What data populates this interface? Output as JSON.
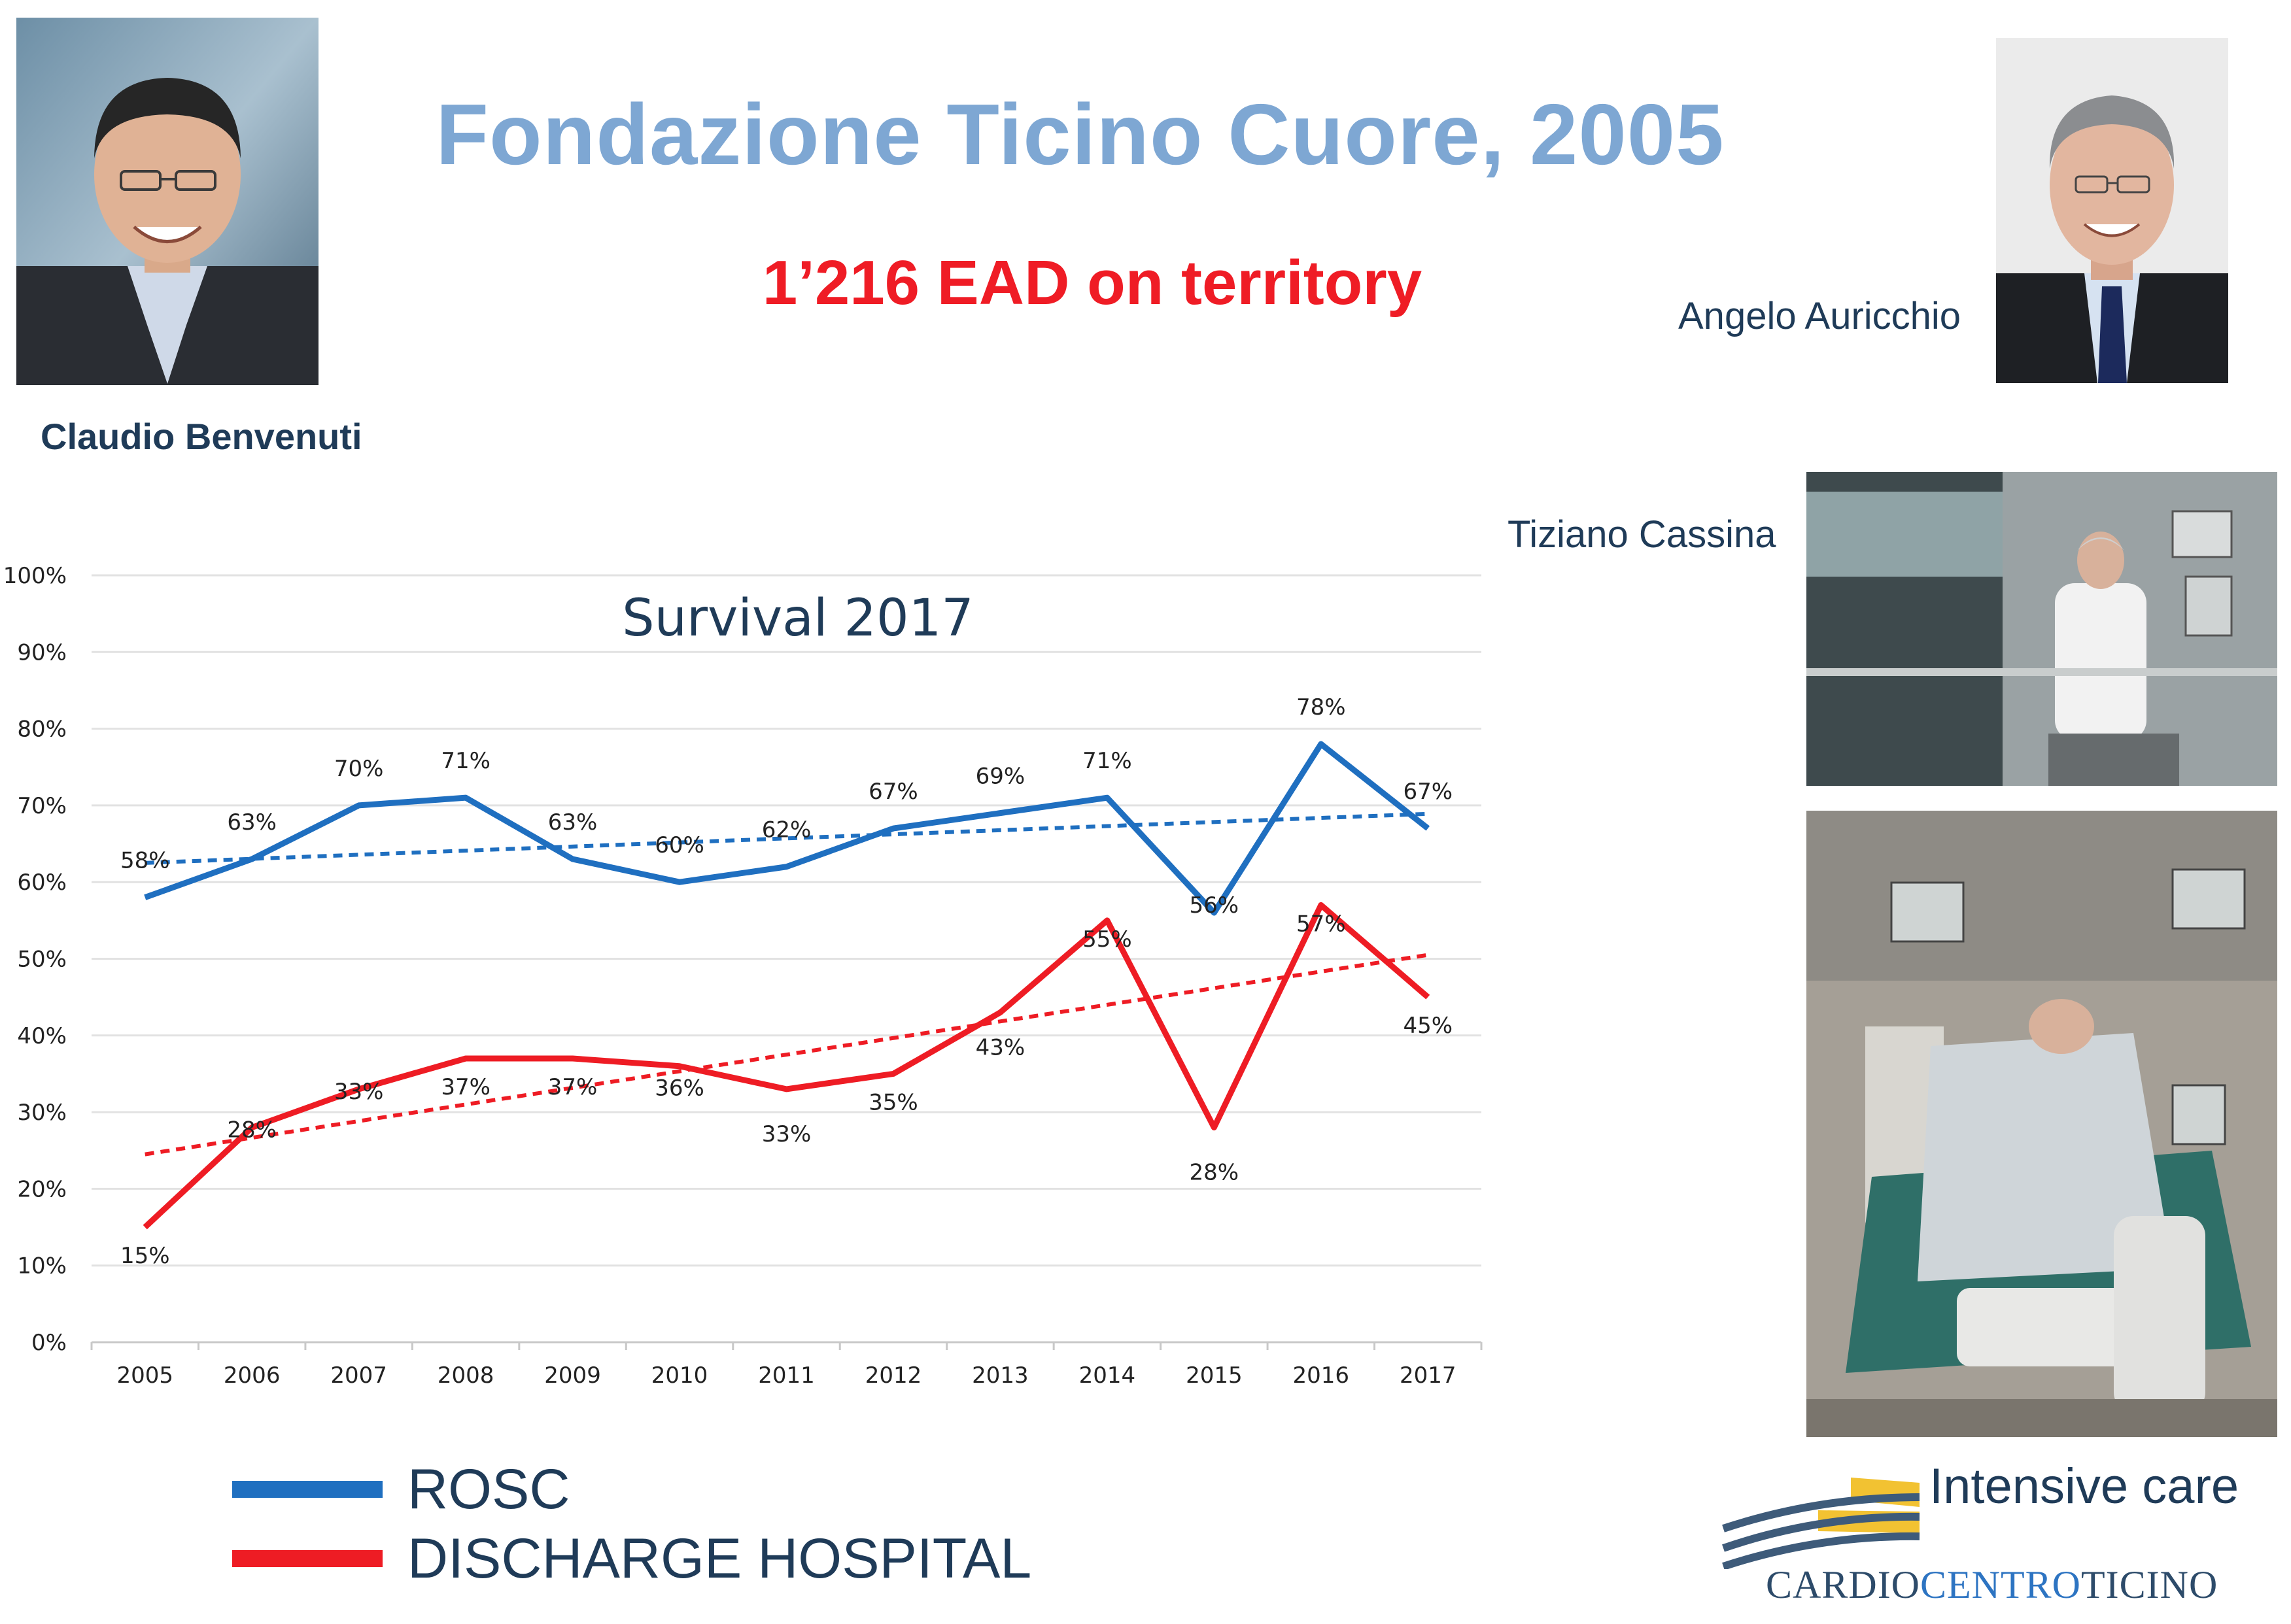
{
  "slide": {
    "title": "Fondazione Ticino Cuore, 2005",
    "subtitle": "1’216 EAD on territory"
  },
  "people": {
    "left_name": "Claudio Benvenuti",
    "right_name": "Angelo Auricchio",
    "middle_name": "Tiziano Cassina"
  },
  "captions": {
    "intensive_care": "Intensive care"
  },
  "logo": {
    "part1": "CARDIO",
    "part2": "CENTRO",
    "part3": "TICINO"
  },
  "legend": {
    "rosc": "ROSC",
    "discharge": "DISCHARGE HOSPITAL"
  },
  "colors": {
    "title": "#7ea7d3",
    "subtitle": "#ef1c25",
    "rosc": "#1f6fc0",
    "discharge": "#ee1c24",
    "text_dark": "#1f3b58"
  },
  "chart_data": {
    "type": "line",
    "title": "Survival 2017",
    "categories": [
      "2005",
      "2006",
      "2007",
      "2008",
      "2009",
      "2010",
      "2011",
      "2012",
      "2013",
      "2014",
      "2015",
      "2016",
      "2017"
    ],
    "series": [
      {
        "name": "ROSC",
        "values": [
          58,
          63,
          70,
          71,
          63,
          60,
          62,
          67,
          69,
          71,
          56,
          78,
          67
        ],
        "labels": [
          "58%",
          "63%",
          "70%",
          "71%",
          "63%",
          "60%",
          "62%",
          "67%",
          "69%",
          "71%",
          "56%",
          "78%",
          "67%"
        ],
        "trendline": [
          62.5,
          68.9
        ]
      },
      {
        "name": "DISCHARGE HOSPITAL",
        "values": [
          15,
          28,
          33,
          37,
          37,
          36,
          33,
          35,
          43,
          55,
          28,
          57,
          45
        ],
        "labels": [
          "15%",
          "28%",
          "33%",
          "37%",
          "37%",
          "36%",
          "33%",
          "35%",
          "43%",
          "55%",
          "28%",
          "57%",
          "45%"
        ],
        "trendline": [
          24.5,
          50.5
        ]
      }
    ],
    "yticks": [
      "0%",
      "10%",
      "20%",
      "30%",
      "40%",
      "50%",
      "60%",
      "70%",
      "80%",
      "90%",
      "100%"
    ],
    "ylim": [
      0,
      100
    ],
    "grid": true,
    "legend_position": "bottom-left"
  }
}
